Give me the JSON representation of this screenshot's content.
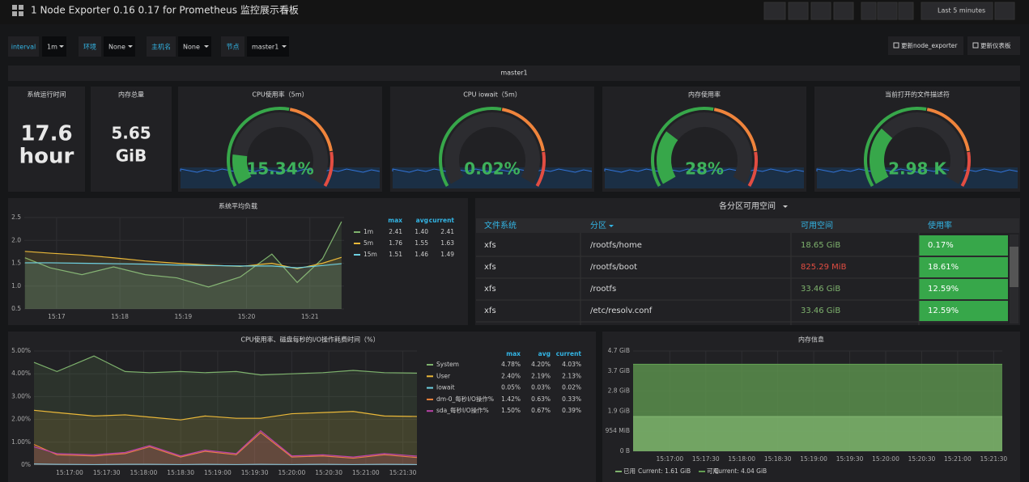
{
  "header": {
    "title": "1 Node Exporter 0.16 0.17 for Prometheus 监控展示看板",
    "time_range": "Last 5 minutes"
  },
  "variables": [
    {
      "label": "interval",
      "value": "1m"
    },
    {
      "label": "环境",
      "value": "None"
    },
    {
      "label": "主机名",
      "value": "None"
    },
    {
      "label": "节点",
      "value": "master1"
    }
  ],
  "links": [
    "更新node_exporter",
    "更新仪表板"
  ],
  "row_title": "master1",
  "stats": [
    {
      "title": "系统运行时间",
      "value": "17.6",
      "unit": "hour"
    },
    {
      "title": "内存总量",
      "value": "5.65",
      "unit": "GiB"
    }
  ],
  "gauges": [
    {
      "title": "CPU使用率（5m）",
      "value": 15.34,
      "label": "15.34%",
      "lim": [
        0,
        100
      ]
    },
    {
      "title": "CPU iowait（5m）",
      "value": 0.02,
      "label": "0.02%",
      "lim": [
        0,
        100
      ]
    },
    {
      "title": "内存使用率",
      "value": 28,
      "label": "28%",
      "lim": [
        0,
        100
      ]
    },
    {
      "title": "当前打开的文件描述符",
      "value": 2980,
      "label": "2.98 K",
      "lim": [
        0,
        10000
      ]
    }
  ],
  "load_chart": {
    "type": "line",
    "title": "系统平均负载",
    "x": [
      16.5,
      16.9,
      17.4,
      17.9,
      18.4,
      18.9,
      19.4,
      19.9,
      20.4,
      20.8,
      21.2,
      21.5
    ],
    "xlim": [
      16.49,
      21.54
    ],
    "xticks": [
      {
        "value": 17,
        "label": "15:17"
      },
      {
        "value": 18,
        "label": "15:18"
      },
      {
        "value": 19,
        "label": "15:19"
      },
      {
        "value": 20,
        "label": "15:20"
      },
      {
        "value": 21,
        "label": "15:21"
      }
    ],
    "ylim": [
      0.5,
      2.5
    ],
    "yticks": [
      0.5,
      {
        "value": 1,
        "label": "1.0"
      },
      1.5,
      {
        "value": 2,
        "label": "2.0"
      },
      2.5
    ],
    "series": [
      {
        "name": "1m",
        "color": "#7eb26d",
        "values": [
          1.62,
          1.4,
          1.25,
          1.42,
          1.25,
          1.18,
          0.98,
          1.2,
          1.7,
          1.08,
          1.6,
          2.41
        ]
      },
      {
        "name": "5m",
        "color": "#eab839",
        "values": [
          1.76,
          1.72,
          1.68,
          1.62,
          1.55,
          1.5,
          1.46,
          1.43,
          1.5,
          1.38,
          1.5,
          1.63
        ]
      },
      {
        "name": "15m",
        "color": "#6ed0e0",
        "values": [
          1.51,
          1.51,
          1.5,
          1.49,
          1.48,
          1.46,
          1.45,
          1.44,
          1.44,
          1.4,
          1.45,
          1.49
        ]
      }
    ],
    "legend": {
      "columns": [
        "max",
        "avg",
        "current"
      ],
      "rows": [
        [
          "2.41",
          "1.40",
          "2.41"
        ],
        [
          "1.76",
          "1.55",
          "1.63"
        ],
        [
          "1.51",
          "1.46",
          "1.49"
        ]
      ]
    }
  },
  "partition_table": {
    "title": "各分区可用空间",
    "columns": [
      "文件系统",
      "分区",
      "可用空间",
      "使用率"
    ],
    "rows": [
      [
        "xfs",
        "/rootfs/home",
        "18.65 GiB",
        "0.17%"
      ],
      [
        "xfs",
        "/rootfs/boot",
        "825.29 MiB",
        "18.61%"
      ],
      [
        "xfs",
        "/rootfs",
        "33.46 GiB",
        "12.59%"
      ],
      [
        "xfs",
        "/etc/resolv.conf",
        "33.46 GiB",
        "12.59%"
      ]
    ],
    "available_colors": [
      "#7eb26d",
      "#e24d42",
      "#7eb26d",
      "#7eb26d"
    ],
    "usage_color": "#37a74a"
  },
  "cpu_chart": {
    "type": "line",
    "title": "CPU使用率、磁盘每秒的I/O操作耗费时间（%）",
    "x": [
      16.52,
      16.83,
      17.33,
      17.75,
      18.08,
      18.5,
      18.83,
      19.25,
      19.58,
      20.0,
      20.42,
      20.83,
      21.25,
      21.69
    ],
    "xlim": [
      16.52,
      21.69
    ],
    "xticks": [
      {
        "value": 17,
        "label": "15:17:00"
      },
      {
        "value": 17.5,
        "label": "15:17:30"
      },
      {
        "value": 18,
        "label": "15:18:00"
      },
      {
        "value": 18.5,
        "label": "15:18:30"
      },
      {
        "value": 19,
        "label": "15:19:00"
      },
      {
        "value": 19.5,
        "label": "15:19:30"
      },
      {
        "value": 20,
        "label": "15:20:00"
      },
      {
        "value": 20.5,
        "label": "15:20:30"
      },
      {
        "value": 21,
        "label": "15:21:00"
      },
      {
        "value": 21.5,
        "label": "15:21:30"
      }
    ],
    "ylim": [
      0,
      5
    ],
    "yticks": [
      {
        "value": 0,
        "label": "0%"
      },
      {
        "value": 1,
        "label": "1.00%"
      },
      {
        "value": 2,
        "label": "2.00%"
      },
      {
        "value": 3,
        "label": "3.00%"
      },
      {
        "value": 4,
        "label": "4.00%"
      },
      {
        "value": 5,
        "label": "5.00%"
      }
    ],
    "series": [
      {
        "name": "System",
        "color": "#7eb26d",
        "values": [
          4.5,
          4.1,
          4.78,
          4.1,
          4.05,
          4.1,
          4.05,
          4.1,
          3.95,
          4.0,
          4.05,
          4.15,
          4.05,
          4.03
        ]
      },
      {
        "name": "User",
        "color": "#eab839",
        "values": [
          2.4,
          2.3,
          2.15,
          2.2,
          2.1,
          1.98,
          2.15,
          2.05,
          2.05,
          2.25,
          2.3,
          2.35,
          2.15,
          2.13
        ]
      },
      {
        "name": "Iowait",
        "color": "#6ed0e0",
        "values": [
          0.05,
          0.03,
          0.02,
          0.03,
          0.03,
          0.02,
          0.03,
          0.02,
          0.03,
          0.02,
          0.03,
          0.02,
          0.03,
          0.02
        ]
      },
      {
        "name": "dm-0_每秒I/O操作%",
        "color": "#ef843c",
        "values": [
          0.9,
          0.45,
          0.4,
          0.5,
          0.8,
          0.35,
          0.6,
          0.45,
          1.42,
          0.35,
          0.4,
          0.3,
          0.45,
          0.33
        ]
      },
      {
        "name": "sda_每秒I/O操作%",
        "color": "#ba43a9",
        "values": [
          0.8,
          0.5,
          0.45,
          0.55,
          0.85,
          0.4,
          0.65,
          0.5,
          1.5,
          0.4,
          0.45,
          0.35,
          0.5,
          0.39
        ]
      }
    ],
    "legend": {
      "columns": [
        "max",
        "avg",
        "current"
      ],
      "rows": [
        [
          "4.78%",
          "4.20%",
          "4.03%"
        ],
        [
          "2.40%",
          "2.19%",
          "2.13%"
        ],
        [
          "0.05%",
          "0.03%",
          "0.02%"
        ],
        [
          "1.42%",
          "0.63%",
          "0.33%"
        ],
        [
          "1.50%",
          "0.67%",
          "0.39%"
        ]
      ]
    }
  },
  "memory_chart": {
    "type": "line",
    "title": "内存信息",
    "x": [
      16.49,
      17.5,
      18.5,
      19.5,
      20.5,
      21.62
    ],
    "xlim": [
      16.49,
      21.62
    ],
    "xticks": [
      {
        "value": 17,
        "label": "15:17:00"
      },
      {
        "value": 17.5,
        "label": "15:17:30"
      },
      {
        "value": 18,
        "label": "15:18:00"
      },
      {
        "value": 18.5,
        "label": "15:18:30"
      },
      {
        "value": 19,
        "label": "15:19:00"
      },
      {
        "value": 19.5,
        "label": "15:19:30"
      },
      {
        "value": 20,
        "label": "15:20:00"
      },
      {
        "value": 20.5,
        "label": "15:20:30"
      },
      {
        "value": 21,
        "label": "15:21:00"
      },
      {
        "value": 21.5,
        "label": "15:21:30"
      }
    ],
    "ylim": [
      0,
      4.657
    ],
    "yticks": [
      {
        "value": 0,
        "label": "0 B"
      },
      {
        "value": 0.9316,
        "label": "954 MiB"
      },
      {
        "value": 1.863,
        "label": "1.9 GiB"
      },
      {
        "value": 2.794,
        "label": "2.8 GiB"
      },
      {
        "value": 3.725,
        "label": "3.7 GiB"
      },
      {
        "value": 4.657,
        "label": "4.7 GiB"
      }
    ],
    "series": [
      {
        "name": "可用",
        "color": "#629e51",
        "values": [
          4.04,
          4.04,
          4.04,
          4.04,
          4.04,
          4.04
        ],
        "current_label": "Current: 4.04 GiB"
      },
      {
        "name": "已用",
        "color": "#7eb26d",
        "values": [
          1.61,
          1.61,
          1.61,
          1.61,
          1.61,
          1.61
        ],
        "current_label": "Current: 1.61 GiB"
      }
    ]
  }
}
